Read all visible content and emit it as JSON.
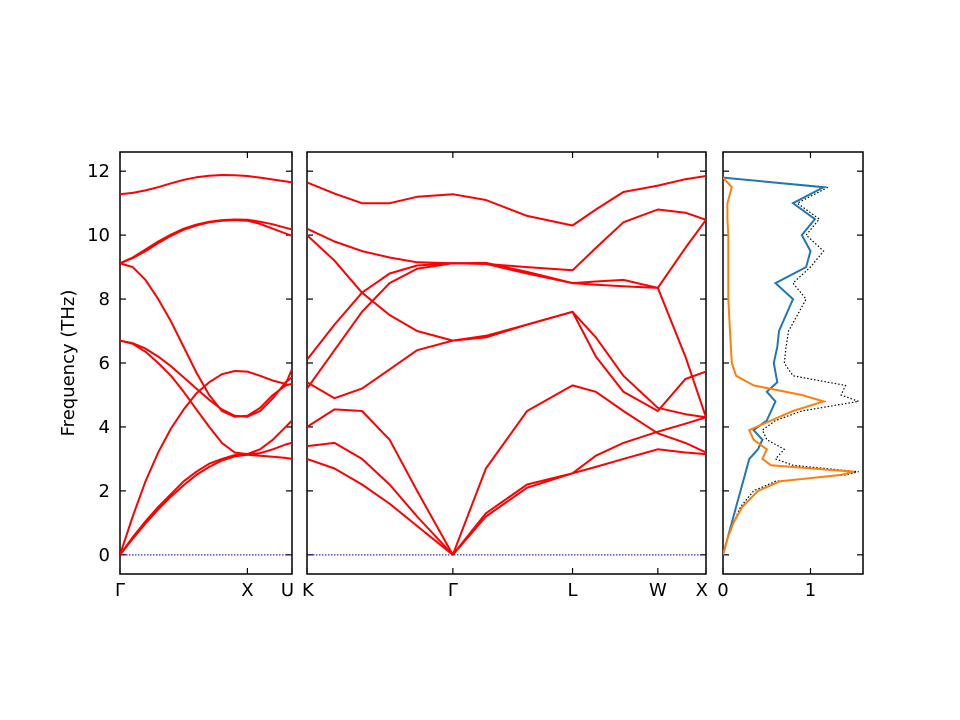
{
  "chart_data": {
    "type": "line",
    "title": "",
    "ylabel": "Frequency (THz)",
    "ylim": [
      -0.6,
      12.6
    ],
    "y_ticks": [
      0,
      2,
      4,
      6,
      8,
      10,
      12
    ],
    "y_tick_labels": [
      "0",
      "2",
      "4",
      "6",
      "8",
      "10",
      "12"
    ],
    "grid": false,
    "colors": {
      "bands": "#ff0000",
      "zero_line": "#0000cc",
      "dos_blue": "#1f77b4",
      "dos_orange": "#ff7f0e",
      "dos_total": "#000000"
    },
    "panels": [
      {
        "id": "band-left",
        "x_ticks": [
          0,
          1,
          1.35
        ],
        "x_tick_labels": [
          "Γ",
          "X",
          "U"
        ],
        "series": [
          {
            "x": [
              0,
              0.1,
              0.2,
              0.3,
              0.4,
              0.5,
              0.6,
              0.7,
              0.8,
              0.9,
              1.0,
              1.1,
              1.2,
              1.3,
              1.35
            ],
            "values": [
              11.28,
              11.32,
              11.4,
              11.5,
              11.62,
              11.73,
              11.81,
              11.86,
              11.88,
              11.87,
              11.85,
              11.8,
              11.74,
              11.68,
              11.65
            ]
          },
          {
            "x": [
              0,
              0.1,
              0.2,
              0.3,
              0.4,
              0.5,
              0.6,
              0.7,
              0.8,
              0.9,
              1.0,
              1.1,
              1.2,
              1.3,
              1.35
            ],
            "values": [
              9.12,
              9.3,
              9.55,
              9.8,
              10.02,
              10.2,
              10.33,
              10.42,
              10.47,
              10.49,
              10.48,
              10.42,
              10.34,
              10.23,
              10.18
            ]
          },
          {
            "x": [
              0,
              0.1,
              0.2,
              0.3,
              0.4,
              0.5,
              0.6,
              0.7,
              0.8,
              0.9,
              1.0,
              1.1,
              1.2,
              1.3,
              1.35
            ],
            "values": [
              9.12,
              9.28,
              9.5,
              9.75,
              9.98,
              10.17,
              10.3,
              10.4,
              10.45,
              10.47,
              10.45,
              10.35,
              10.2,
              10.05,
              9.98
            ]
          },
          {
            "x": [
              0,
              0.1,
              0.2,
              0.3,
              0.4,
              0.5,
              0.6,
              0.7,
              0.8,
              0.9,
              1.0,
              1.1,
              1.2,
              1.3,
              1.35
            ],
            "values": [
              9.12,
              9.0,
              8.6,
              8.0,
              7.3,
              6.5,
              5.7,
              5.0,
              4.5,
              4.32,
              4.35,
              4.6,
              5.0,
              5.3,
              5.35
            ]
          },
          {
            "x": [
              0,
              0.1,
              0.2,
              0.3,
              0.4,
              0.5,
              0.6,
              0.7,
              0.8,
              0.9,
              1.0,
              1.1,
              1.2,
              1.3,
              1.35
            ],
            "values": [
              6.7,
              6.6,
              6.35,
              6.0,
              5.6,
              5.1,
              4.55,
              4.0,
              3.5,
              3.2,
              3.15,
              3.3,
              3.6,
              4.0,
              4.2
            ]
          },
          {
            "x": [
              0,
              0.1,
              0.2,
              0.3,
              0.4,
              0.5,
              0.6,
              0.7,
              0.8,
              0.9,
              1.0,
              1.1,
              1.2,
              1.3,
              1.35
            ],
            "values": [
              6.7,
              6.62,
              6.45,
              6.2,
              5.9,
              5.55,
              5.2,
              4.85,
              4.55,
              4.35,
              4.32,
              4.5,
              4.9,
              5.4,
              5.55
            ]
          },
          {
            "x": [
              0,
              0.1,
              0.2,
              0.3,
              0.4,
              0.5,
              0.6,
              0.7,
              0.8,
              0.9,
              1.0,
              1.1,
              1.2,
              1.3,
              1.35
            ],
            "values": [
              0,
              1.2,
              2.3,
              3.2,
              3.95,
              4.55,
              5.05,
              5.4,
              5.65,
              5.75,
              5.73,
              5.6,
              5.45,
              5.35,
              5.8
            ]
          },
          {
            "x": [
              0,
              0.1,
              0.2,
              0.3,
              0.4,
              0.5,
              0.6,
              0.7,
              0.8,
              0.9,
              1.0,
              1.1,
              1.2,
              1.3,
              1.35
            ],
            "values": [
              0,
              0.55,
              1.05,
              1.5,
              1.9,
              2.3,
              2.6,
              2.85,
              3.0,
              3.12,
              3.15,
              3.18,
              3.3,
              3.45,
              3.5
            ]
          },
          {
            "x": [
              0,
              0.1,
              0.2,
              0.3,
              0.4,
              0.5,
              0.6,
              0.7,
              0.8,
              0.9,
              1.0,
              1.1,
              1.2,
              1.3,
              1.35
            ],
            "values": [
              0,
              0.5,
              0.98,
              1.42,
              1.82,
              2.18,
              2.5,
              2.75,
              2.95,
              3.08,
              3.13,
              3.1,
              3.07,
              3.03,
              3.0
            ]
          }
        ]
      },
      {
        "id": "band-middle",
        "x_ticks": [
          0,
          1.06,
          1.93,
          2.55,
          2.9
        ],
        "x_tick_labels": [
          "K",
          "Γ",
          "L",
          "W",
          "X"
        ],
        "series": [
          {
            "x": [
              0,
              0.2,
              0.4,
              0.6,
              0.8,
              1.06,
              1.3,
              1.6,
              1.93,
              2.1,
              2.3,
              2.55,
              2.75,
              2.9
            ],
            "values": [
              11.65,
              11.3,
              11.0,
              11.0,
              11.2,
              11.28,
              11.1,
              10.6,
              10.3,
              10.8,
              11.35,
              11.55,
              11.75,
              11.85
            ]
          },
          {
            "x": [
              0,
              0.2,
              0.4,
              0.6,
              0.8,
              1.06,
              1.3,
              1.6,
              1.93,
              2.1,
              2.3,
              2.55,
              2.75,
              2.9
            ],
            "values": [
              10.2,
              9.8,
              9.5,
              9.3,
              9.15,
              9.12,
              9.1,
              9.0,
              8.9,
              9.6,
              10.4,
              10.8,
              10.7,
              10.48
            ]
          },
          {
            "x": [
              0,
              0.2,
              0.4,
              0.6,
              0.8,
              1.06,
              1.3,
              1.6,
              1.93,
              2.1,
              2.3,
              2.55,
              2.75,
              2.9
            ],
            "values": [
              10.0,
              9.2,
              8.2,
              7.5,
              7.0,
              6.7,
              6.85,
              7.2,
              7.6,
              6.8,
              5.6,
              4.6,
              4.4,
              4.3
            ]
          },
          {
            "x": [
              0,
              0.2,
              0.4,
              0.6,
              0.8,
              1.06,
              1.3,
              1.6,
              1.93,
              2.1,
              2.3,
              2.55,
              2.75,
              2.9
            ],
            "values": [
              6.1,
              7.2,
              8.2,
              8.8,
              9.05,
              9.12,
              9.13,
              8.85,
              8.5,
              8.45,
              8.4,
              8.35,
              9.6,
              10.48
            ]
          },
          {
            "x": [
              0,
              0.2,
              0.4,
              0.6,
              0.8,
              1.06,
              1.3,
              1.6,
              1.93,
              2.1,
              2.3,
              2.55,
              2.75,
              2.9
            ],
            "values": [
              5.2,
              6.4,
              7.6,
              8.5,
              8.95,
              9.12,
              9.1,
              8.8,
              8.5,
              8.55,
              8.6,
              8.35,
              6.2,
              4.3
            ]
          },
          {
            "x": [
              0,
              0.2,
              0.4,
              0.6,
              0.8,
              1.06,
              1.3,
              1.6,
              1.93,
              2.1,
              2.3,
              2.55,
              2.75,
              2.9
            ],
            "values": [
              5.4,
              4.9,
              5.2,
              5.8,
              6.4,
              6.7,
              6.8,
              7.2,
              7.6,
              6.2,
              5.1,
              4.5,
              5.5,
              5.73
            ]
          },
          {
            "x": [
              0,
              0.2,
              0.4,
              0.6,
              0.8,
              1.06,
              1.3,
              1.6,
              1.93,
              2.1,
              2.3,
              2.55,
              2.75,
              2.9
            ],
            "values": [
              4.0,
              4.55,
              4.5,
              3.6,
              2.0,
              0,
              2.7,
              4.5,
              5.3,
              5.1,
              4.5,
              3.8,
              3.5,
              3.2
            ]
          },
          {
            "x": [
              0,
              0.2,
              0.4,
              0.6,
              0.8,
              1.06,
              1.3,
              1.6,
              1.93,
              2.1,
              2.3,
              2.55,
              2.75,
              2.9
            ],
            "values": [
              3.4,
              3.5,
              3.0,
              2.2,
              1.2,
              0,
              1.3,
              2.2,
              2.55,
              3.1,
              3.5,
              3.85,
              4.1,
              4.3
            ]
          },
          {
            "x": [
              0,
              0.2,
              0.4,
              0.6,
              0.8,
              1.06,
              1.3,
              1.6,
              1.93,
              2.1,
              2.3,
              2.55,
              2.75,
              2.9
            ],
            "values": [
              3.0,
              2.7,
              2.2,
              1.6,
              0.9,
              0,
              1.2,
              2.1,
              2.55,
              2.75,
              3.0,
              3.3,
              3.2,
              3.15
            ]
          }
        ]
      },
      {
        "id": "dos",
        "x_ticks": [
          0,
          1
        ],
        "x_tick_labels": [
          "0",
          "1"
        ],
        "xlim": [
          0,
          1.6
        ],
        "series": [
          {
            "color": "dos_total",
            "style": "dotted",
            "freq": [
              0,
              0.5,
              1,
              1.5,
              2,
              2.3,
              2.5,
              2.6,
              2.8,
              3,
              3.3,
              3.6,
              3.9,
              4.2,
              4.5,
              4.8,
              5,
              5.3,
              5.6,
              6,
              6.5,
              7,
              7.5,
              8,
              8.5,
              9,
              9.5,
              10,
              10.5,
              11,
              11.5,
              11.8
            ],
            "values": [
              0,
              0.05,
              0.12,
              0.2,
              0.35,
              0.6,
              1.4,
              1.55,
              0.8,
              0.6,
              0.7,
              0.5,
              0.45,
              0.6,
              0.9,
              1.55,
              1.35,
              1.4,
              0.8,
              0.7,
              0.72,
              0.75,
              0.85,
              0.95,
              0.8,
              1.0,
              1.15,
              0.95,
              1.1,
              0.85,
              1.2,
              0
            ]
          },
          {
            "color": "dos_blue",
            "style": "solid",
            "freq": [
              0,
              0.5,
              1,
              1.5,
              2,
              2.5,
              3,
              3.3,
              3.6,
              3.9,
              4.2,
              4.5,
              4.8,
              5.1,
              5.4,
              5.7,
              6,
              6.5,
              7,
              7.5,
              8,
              8.5,
              9,
              9.5,
              10,
              10.5,
              11,
              11.5,
              11.8
            ],
            "values": [
              0,
              0.05,
              0.1,
              0.15,
              0.2,
              0.25,
              0.3,
              0.4,
              0.45,
              0.35,
              0.5,
              0.55,
              0.6,
              0.5,
              0.62,
              0.6,
              0.58,
              0.62,
              0.64,
              0.72,
              0.8,
              0.6,
              0.95,
              1.0,
              0.9,
              1.05,
              0.8,
              1.15,
              0
            ]
          },
          {
            "color": "dos_orange",
            "style": "solid",
            "freq": [
              0,
              0.5,
              1,
              1.5,
              2,
              2.3,
              2.5,
              2.6,
              2.8,
              3,
              3.3,
              3.6,
              3.9,
              4.2,
              4.5,
              4.8,
              5,
              5.3,
              5.6,
              6,
              7,
              8,
              9,
              10,
              10.5,
              11,
              11.5,
              11.8
            ],
            "values": [
              0,
              0.05,
              0.12,
              0.22,
              0.4,
              0.65,
              1.35,
              1.5,
              0.55,
              0.45,
              0.5,
              0.35,
              0.3,
              0.55,
              0.8,
              1.15,
              0.9,
              0.35,
              0.15,
              0.1,
              0.08,
              0.06,
              0.06,
              0.06,
              0.05,
              0.05,
              0.1,
              0
            ]
          }
        ]
      }
    ]
  }
}
